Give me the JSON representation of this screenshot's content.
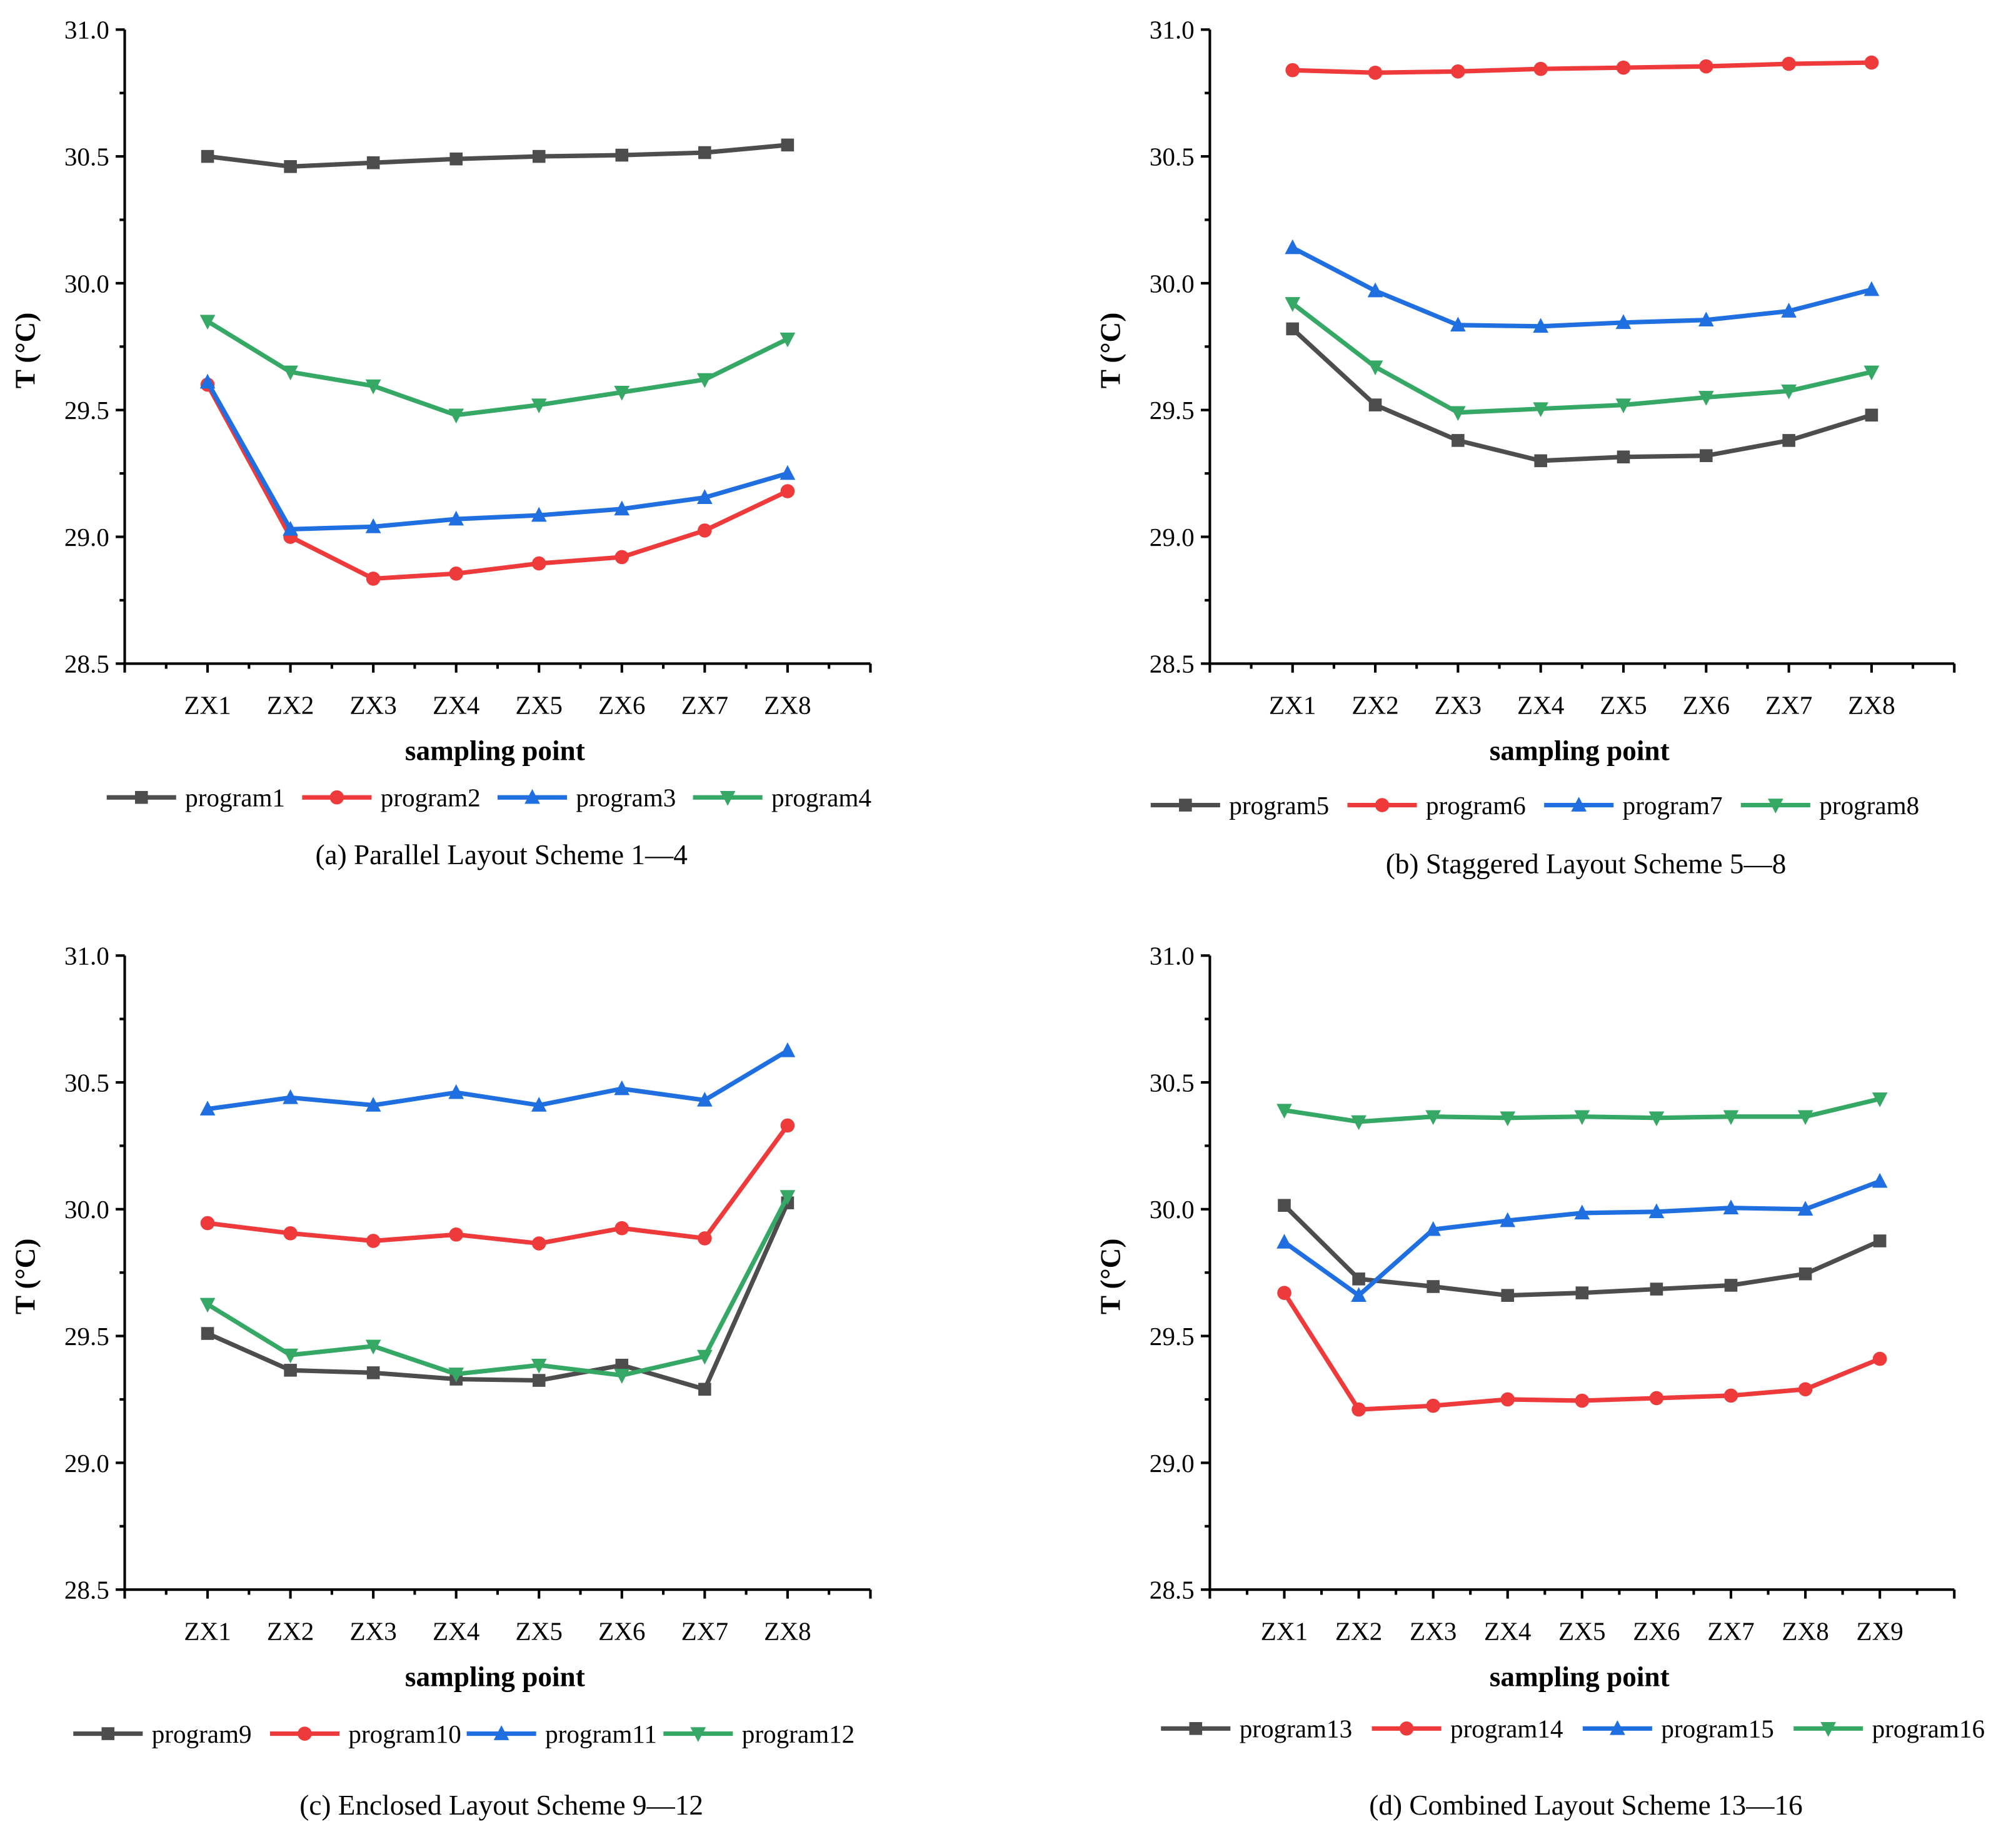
{
  "colors": {
    "program_a": "#4d4d4d",
    "program_b": "#ee3a3a",
    "program_c": "#1f6fe0",
    "program_d": "#36a865"
  },
  "chart_data": [
    {
      "type": "line",
      "title": "(a) Parallel Layout Scheme 1—4",
      "xlabel": "sampling point",
      "ylabel": "T (°C)",
      "ylim": [
        28.5,
        31.0
      ],
      "yticks": [
        "28.5",
        "29.0",
        "29.5",
        "30.0",
        "30.5",
        "31.0"
      ],
      "legend": "bottom",
      "categories": [
        "ZX1",
        "ZX2",
        "ZX3",
        "ZX4",
        "ZX5",
        "ZX6",
        "ZX7",
        "ZX8"
      ],
      "series": [
        {
          "name": "program1",
          "marker": "square",
          "values": [
            30.5,
            30.46,
            30.475,
            30.49,
            30.5,
            30.505,
            30.515,
            30.545
          ]
        },
        {
          "name": "program2",
          "marker": "circle",
          "values": [
            29.6,
            29.0,
            28.835,
            28.855,
            28.895,
            28.92,
            29.025,
            29.18
          ]
        },
        {
          "name": "program3",
          "marker": "triangle-up",
          "values": [
            29.61,
            29.03,
            29.04,
            29.07,
            29.085,
            29.11,
            29.155,
            29.25
          ]
        },
        {
          "name": "program4",
          "marker": "triangle-down",
          "values": [
            29.85,
            29.65,
            29.595,
            29.48,
            29.52,
            29.57,
            29.62,
            29.78
          ]
        }
      ]
    },
    {
      "type": "line",
      "title": "(b) Staggered Layout Scheme 5—8",
      "xlabel": "sampling point",
      "ylabel": "T (°C)",
      "ylim": [
        28.5,
        31.0
      ],
      "yticks": [
        "28.5",
        "29.0",
        "29.5",
        "30.0",
        "30.5",
        "31.0"
      ],
      "legend": "bottom",
      "categories": [
        "ZX1",
        "ZX2",
        "ZX3",
        "ZX4",
        "ZX5",
        "ZX6",
        "ZX7",
        "ZX8"
      ],
      "series": [
        {
          "name": "program5",
          "marker": "square",
          "values": [
            29.82,
            29.52,
            29.38,
            29.3,
            29.315,
            29.32,
            29.38,
            29.48
          ]
        },
        {
          "name": "program6",
          "marker": "circle",
          "values": [
            30.84,
            30.83,
            30.835,
            30.845,
            30.85,
            30.855,
            30.865,
            30.87
          ]
        },
        {
          "name": "program7",
          "marker": "triangle-up",
          "values": [
            30.14,
            29.97,
            29.835,
            29.83,
            29.845,
            29.855,
            29.89,
            29.975
          ]
        },
        {
          "name": "program8",
          "marker": "triangle-down",
          "values": [
            29.92,
            29.67,
            29.49,
            29.505,
            29.52,
            29.55,
            29.575,
            29.65
          ]
        }
      ]
    },
    {
      "type": "line",
      "title": "(c) Enclosed  Layout Scheme 9—12",
      "xlabel": "sampling point",
      "ylabel": "T (°C)",
      "ylim": [
        28.5,
        31.0
      ],
      "yticks": [
        "28.5",
        "29.0",
        "29.5",
        "30.0",
        "30.5",
        "31.0"
      ],
      "legend": "bottom",
      "categories": [
        "ZX1",
        "ZX2",
        "ZX3",
        "ZX4",
        "ZX5",
        "ZX6",
        "ZX7",
        "ZX8"
      ],
      "series": [
        {
          "name": "program9",
          "marker": "square",
          "values": [
            29.51,
            29.365,
            29.355,
            29.33,
            29.325,
            29.385,
            29.29,
            30.025
          ]
        },
        {
          "name": "program10",
          "marker": "circle",
          "values": [
            29.945,
            29.905,
            29.875,
            29.9,
            29.865,
            29.925,
            29.885,
            30.33
          ]
        },
        {
          "name": "program11",
          "marker": "triangle-up",
          "values": [
            30.395,
            30.44,
            30.41,
            30.46,
            30.41,
            30.475,
            30.43,
            30.625
          ]
        },
        {
          "name": "program12",
          "marker": "triangle-down",
          "values": [
            29.625,
            29.425,
            29.46,
            29.35,
            29.385,
            29.345,
            29.42,
            30.05
          ]
        }
      ]
    },
    {
      "type": "line",
      "title": "(d) Combined Layout Scheme 13—16",
      "xlabel": "sampling point",
      "ylabel": "T (°C)",
      "ylim": [
        28.5,
        31.0
      ],
      "yticks": [
        "28.5",
        "29.0",
        "29.5",
        "30.0",
        "30.5",
        "31.0"
      ],
      "legend": "bottom",
      "categories": [
        "ZX1",
        "ZX2",
        "ZX3",
        "ZX4",
        "ZX5",
        "ZX6",
        "ZX7",
        "ZX8",
        "ZX9"
      ],
      "series": [
        {
          "name": "program13",
          "marker": "square",
          "values": [
            30.015,
            29.725,
            29.695,
            29.66,
            29.67,
            29.685,
            29.7,
            29.745,
            29.875
          ]
        },
        {
          "name": "program14",
          "marker": "circle",
          "values": [
            29.67,
            29.21,
            29.225,
            29.25,
            29.245,
            29.255,
            29.265,
            29.29,
            29.41
          ]
        },
        {
          "name": "program15",
          "marker": "triangle-up",
          "values": [
            29.87,
            29.66,
            29.92,
            29.955,
            29.985,
            29.99,
            30.005,
            30.0,
            30.11
          ]
        },
        {
          "name": "program16",
          "marker": "triangle-down",
          "values": [
            30.39,
            30.345,
            30.365,
            30.36,
            30.365,
            30.36,
            30.365,
            30.365,
            30.435
          ]
        }
      ]
    }
  ]
}
